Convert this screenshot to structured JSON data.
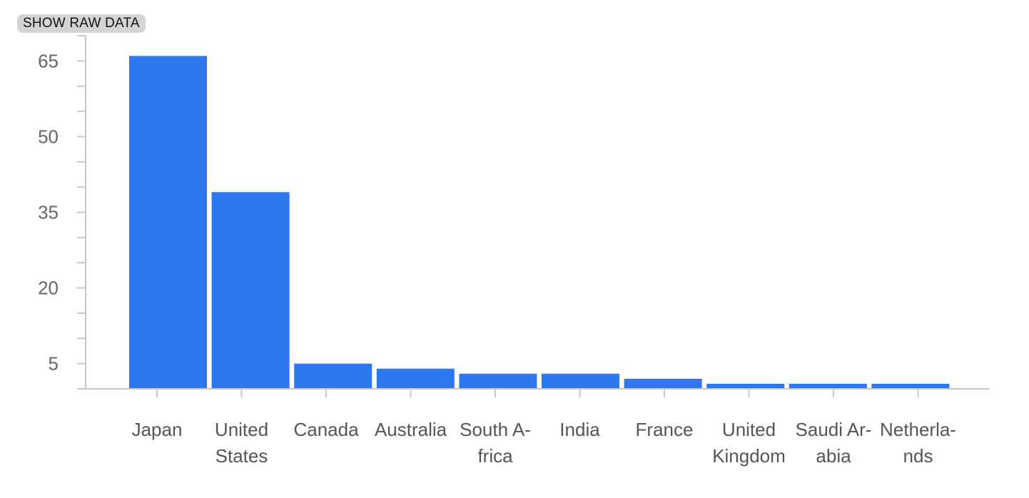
{
  "toolbar": {
    "show_raw_data_label": "SHOW RAW DATA"
  },
  "chart_data": {
    "type": "bar",
    "categories": [
      "Japan",
      "United States",
      "Canada",
      "Australia",
      "South Africa",
      "India",
      "France",
      "United Kingdom",
      "Saudi Arabia",
      "Netherlands"
    ],
    "category_label_lines": [
      [
        "Japan"
      ],
      [
        "United",
        "States"
      ],
      [
        "Canada"
      ],
      [
        "Australia"
      ],
      [
        "South A-",
        "frica"
      ],
      [
        "India"
      ],
      [
        "France"
      ],
      [
        "United",
        "Kingdom"
      ],
      [
        "Saudi Ar-",
        "abia"
      ],
      [
        "Netherla-",
        "nds"
      ]
    ],
    "values": [
      66,
      39,
      5,
      4,
      3,
      3,
      2,
      1,
      1,
      1
    ],
    "ylim": [
      0,
      70
    ],
    "yticks": [
      5,
      20,
      35,
      50,
      65
    ],
    "minor_tick_step": 5,
    "title": "",
    "xlabel": "",
    "ylabel": "",
    "grid": false,
    "bar_color": "#2e78ef",
    "axis_color": "#c8c8c8"
  }
}
